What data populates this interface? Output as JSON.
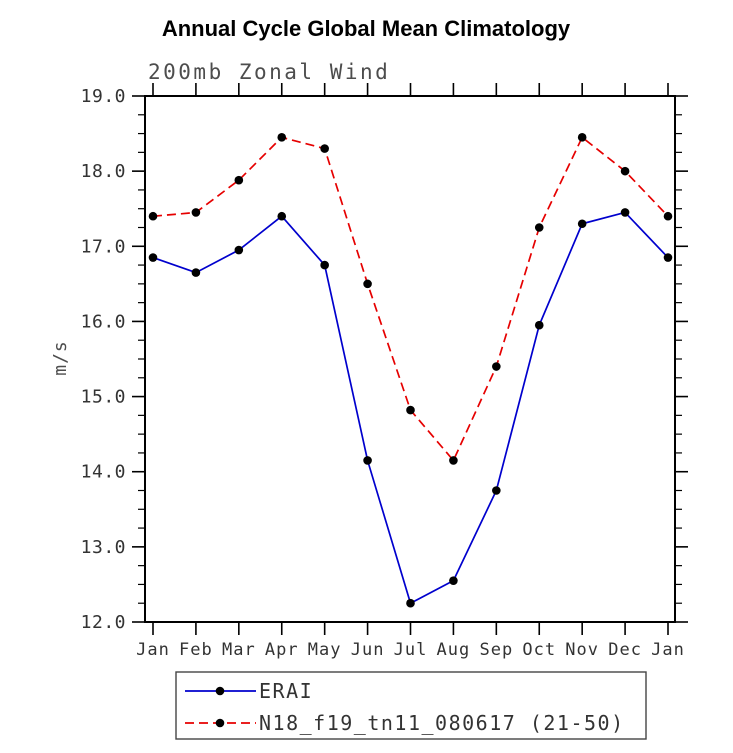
{
  "chart_data": {
    "type": "line",
    "title": "Annual Cycle Global Mean Climatology",
    "subtitle": "200mb Zonal Wind",
    "ylabel": "m/s",
    "xlabel": "",
    "categories": [
      "Jan",
      "Feb",
      "Mar",
      "Apr",
      "May",
      "Jun",
      "Jul",
      "Aug",
      "Sep",
      "Oct",
      "Nov",
      "Dec",
      "Jan"
    ],
    "ylim": [
      12.0,
      19.0
    ],
    "yticks": [
      12.0,
      13.0,
      14.0,
      15.0,
      16.0,
      17.0,
      18.0,
      19.0
    ],
    "ytick_labels": [
      "12.0",
      "13.0",
      "14.0",
      "15.0",
      "16.0",
      "17.0",
      "18.0",
      "19.0"
    ],
    "y_minor_step": 0.25,
    "grid": false,
    "legend_position": "bottom",
    "axis_color": "#000000",
    "marker_color": "#000000",
    "series": [
      {
        "name": "ERAI",
        "color": "#0000cd",
        "dash": "solid",
        "marker": "circle",
        "values": [
          16.85,
          16.65,
          16.95,
          17.4,
          16.75,
          14.15,
          12.25,
          12.55,
          13.75,
          15.95,
          17.3,
          17.45,
          16.85
        ]
      },
      {
        "name": "N18_f19_tn11_080617 (21-50)",
        "color": "#e60000",
        "dash": "dashed",
        "marker": "circle",
        "values": [
          17.4,
          17.45,
          17.88,
          18.45,
          18.3,
          16.5,
          14.82,
          14.15,
          15.4,
          17.25,
          18.45,
          18.0,
          17.4
        ]
      }
    ]
  }
}
